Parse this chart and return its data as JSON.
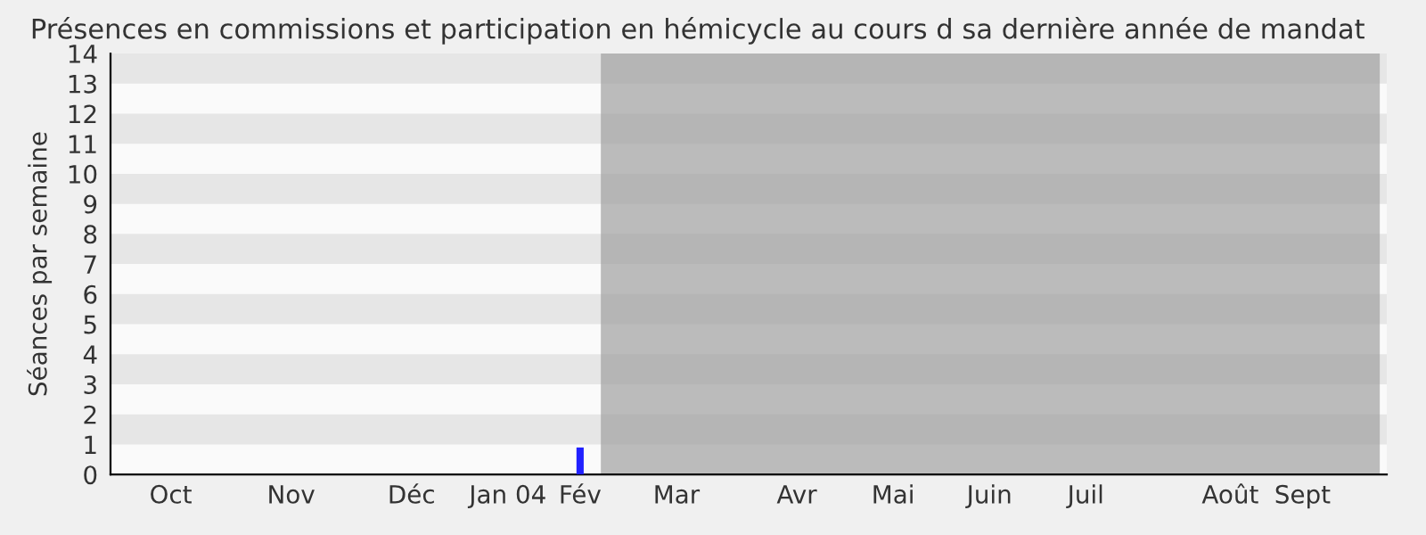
{
  "chart_data": {
    "type": "bar",
    "title": "Présences en commissions et participation en hémicycle au cours d sa dernière année de mandat",
    "ylabel": "Séances par semaine",
    "categories": [
      null,
      null,
      "Oct",
      null,
      null,
      null,
      null,
      "Nov",
      null,
      null,
      null,
      null,
      "Déc",
      null,
      null,
      null,
      "Jan 04",
      null,
      null,
      "Fév",
      null,
      null,
      null,
      "Mar",
      null,
      null,
      null,
      null,
      "Avr",
      null,
      null,
      null,
      "Mai",
      null,
      null,
      null,
      "Juin",
      null,
      null,
      null,
      "Juil",
      null,
      null,
      null,
      null,
      null,
      "Août",
      null,
      null,
      "Sept",
      null,
      null,
      null
    ],
    "values": [
      0,
      0,
      0,
      0,
      0,
      0,
      0,
      0,
      0,
      0,
      0,
      0,
      0,
      0,
      0,
      0,
      0,
      0,
      0,
      0.9,
      0,
      0,
      0,
      0,
      0,
      0,
      0,
      0,
      0,
      0,
      0,
      0,
      0,
      0,
      0,
      0,
      0,
      0,
      0,
      0,
      0,
      0,
      0,
      0,
      0,
      0,
      0,
      0,
      0,
      0,
      0,
      0,
      0
    ],
    "color": "#2020ff",
    "ylim": [
      0,
      14
    ],
    "yticks": [
      0,
      1,
      2,
      3,
      4,
      5,
      6,
      7,
      8,
      9,
      10,
      11,
      12,
      13,
      14
    ]
  }
}
